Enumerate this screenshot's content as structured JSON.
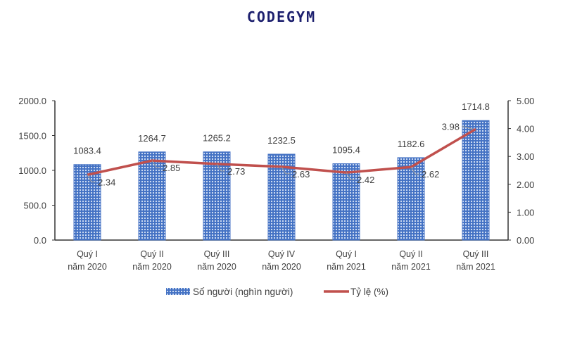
{
  "logo": "CODEGYM",
  "chart_data": {
    "type": "bar+line",
    "categories": [
      [
        "Quý I",
        "năm 2020"
      ],
      [
        "Quý II",
        "năm 2020"
      ],
      [
        "Quý III",
        "năm 2020"
      ],
      [
        "Quý IV",
        "năm 2020"
      ],
      [
        "Quý I",
        "năm 2021"
      ],
      [
        "Quý II",
        "năm 2021"
      ],
      [
        "Quý III",
        "năm 2021"
      ]
    ],
    "series": [
      {
        "name": "Số người (nghìn người)",
        "type": "bar",
        "axis": "left",
        "values": [
          1083.4,
          1264.7,
          1265.2,
          1232.5,
          1095.4,
          1182.6,
          1714.8
        ],
        "labels": [
          "1083.4",
          "1264.7",
          "1265.2",
          "1232.5",
          "1095.4",
          "1182.6",
          "1714.8"
        ],
        "color": "#4472c4"
      },
      {
        "name": "Tỷ lệ (%)",
        "type": "line",
        "axis": "right",
        "values": [
          2.34,
          2.85,
          2.73,
          2.63,
          2.42,
          2.62,
          3.98
        ],
        "labels": [
          "2.34",
          "2.85",
          "2.73",
          "2.63",
          "2.42",
          "2.62",
          "3.98"
        ],
        "color": "#c0504d"
      }
    ],
    "left_axis": {
      "ylim": [
        0,
        2000
      ],
      "ticks": [
        "0.0",
        "500.0",
        "1000.0",
        "1500.0",
        "2000.0"
      ]
    },
    "right_axis": {
      "ylim": [
        0,
        5
      ],
      "ticks": [
        "0.00",
        "1.00",
        "2.00",
        "3.00",
        "4.00",
        "5.00"
      ]
    },
    "legend_placement": "bottom",
    "grid": false
  }
}
